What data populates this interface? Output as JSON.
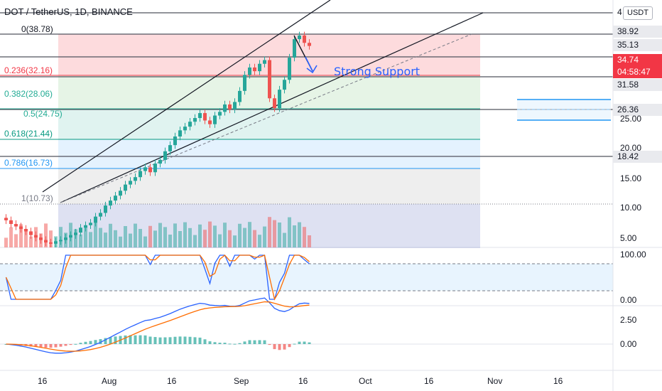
{
  "header": {
    "title": "DOT / TetherUS, 1D, BINANCE",
    "unit": "USDT",
    "cut_label": "4"
  },
  "fib_levels": [
    {
      "label": "0(38.78)",
      "color": "#787b86"
    },
    {
      "label": "0.236(32.16)",
      "color": "#f23645"
    },
    {
      "label": "0.382(28.06)",
      "color": "#22ab94"
    },
    {
      "label": "0.5(24.75)",
      "color": "#22ab94"
    },
    {
      "label": "0.618(21.44)",
      "color": "#089981"
    },
    {
      "label": "0.786(16.73)",
      "color": "#2196f3"
    },
    {
      "label": "1(10.73)",
      "color": "#787b86"
    }
  ],
  "price_axis": {
    "labels": [
      "25.00",
      "20.00",
      "15.00",
      "10.00",
      "5.00"
    ]
  },
  "price_tags": [
    {
      "value": "38.92",
      "bg": "#e9eaee",
      "fg": "#131722"
    },
    {
      "value": "35.13",
      "bg": "#e9eaee",
      "fg": "#131722"
    },
    {
      "value": "34.74",
      "bg": "#f23645",
      "fg": "#ffffff"
    },
    {
      "value": "04:58:47",
      "bg": "#f23645",
      "fg": "#ffffff"
    },
    {
      "value": "31.58",
      "bg": "#e9eaee",
      "fg": "#131722"
    },
    {
      "value": "26.36",
      "bg": "#e9eaee",
      "fg": "#131722"
    },
    {
      "value": "18.42",
      "bg": "#e9eaee",
      "fg": "#131722"
    }
  ],
  "stoch_axis": {
    "labels": [
      "100.00",
      "0.00"
    ]
  },
  "macd_axis": {
    "labels": [
      "2.50",
      "0.00"
    ]
  },
  "time_axis": {
    "labels": [
      "16",
      "Aug",
      "16",
      "Sep",
      "16",
      "Oct",
      "16",
      "Nov",
      "16"
    ]
  },
  "annotation": {
    "text": "Strong Support",
    "color": "#2962ff"
  },
  "colors": {
    "up": "#26a69a",
    "down": "#ef5350",
    "k_line": "#2962ff",
    "d_line": "#ff6d00"
  },
  "chart_data": {
    "type": "line",
    "x": [],
    "y": [],
    "close": [
      6.4,
      5.8,
      5.4,
      5.0,
      4.6,
      4.0,
      3.6,
      3.2,
      2.8,
      2.6,
      3.0,
      3.2,
      3.6,
      4.0,
      4.4,
      5.2,
      5.6,
      6.0,
      7.0,
      7.6,
      8.8,
      9.6,
      10.4,
      11.2,
      12.2,
      12.8,
      13.4,
      14.4,
      15.0,
      14.2,
      15.6,
      16.2,
      17.6,
      18.6,
      20.0,
      21.0,
      21.6,
      22.4,
      23.0,
      23.8,
      22.6,
      22.0,
      23.4,
      24.0,
      25.2,
      24.4,
      25.6,
      27.4,
      30.0,
      31.2,
      30.6,
      31.8,
      32.4,
      26.2,
      24.6,
      27.6,
      29.2,
      32.8,
      35.8,
      36.4,
      35.2,
      34.7
    ],
    "ylim": [
      2.0,
      41.0
    ]
  }
}
